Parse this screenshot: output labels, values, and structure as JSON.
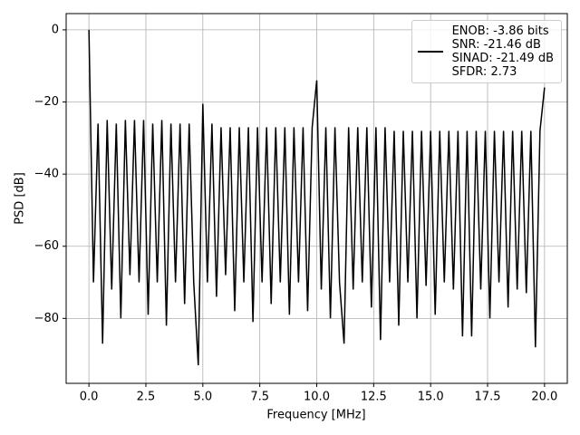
{
  "chart_data": {
    "type": "line",
    "xlabel": "Frequency [MHz]",
    "ylabel": "PSD [dB]",
    "x": [
      0.0,
      0.2,
      0.4,
      0.6,
      0.8,
      1.0,
      1.2,
      1.4,
      1.6,
      1.8,
      2.0,
      2.2,
      2.4,
      2.6,
      2.8,
      3.0,
      3.2,
      3.4,
      3.6,
      3.8,
      4.0,
      4.2,
      4.4,
      4.6,
      4.8,
      5.0,
      5.2,
      5.4,
      5.6,
      5.8,
      6.0,
      6.2,
      6.4,
      6.6,
      6.8,
      7.0,
      7.2,
      7.4,
      7.6,
      7.8,
      8.0,
      8.2,
      8.4,
      8.6,
      8.8,
      9.0,
      9.2,
      9.4,
      9.6,
      9.8,
      10.0,
      10.2,
      10.4,
      10.6,
      10.8,
      11.0,
      11.2,
      11.4,
      11.6,
      11.8,
      12.0,
      12.2,
      12.4,
      12.6,
      12.8,
      13.0,
      13.2,
      13.4,
      13.6,
      13.8,
      14.0,
      14.2,
      14.4,
      14.6,
      14.8,
      15.0,
      15.2,
      15.4,
      15.6,
      15.8,
      16.0,
      16.2,
      16.4,
      16.6,
      16.8,
      17.0,
      17.2,
      17.4,
      17.6,
      17.8,
      18.0,
      18.2,
      18.4,
      18.6,
      18.8,
      19.0,
      19.2,
      19.4,
      19.6,
      19.8,
      20.0
    ],
    "series": [
      {
        "name": "ENOB: -3.86 bits\nSNR: -21.46 dB\nSINAD: -21.49 dB\nSFDR: 2.73",
        "color": "#000000",
        "values": [
          0,
          -70,
          -26,
          -87,
          -25,
          -72,
          -26,
          -80,
          -25,
          -68,
          -25,
          -70,
          -25,
          -79,
          -26,
          -70,
          -25,
          -82,
          -26,
          -70,
          -26,
          -76,
          -26,
          -70,
          -93,
          -20.5,
          -70,
          -26,
          -74,
          -27,
          -68,
          -27,
          -78,
          -27,
          -70,
          -27,
          -81,
          -27,
          -70,
          -27,
          -76,
          -27,
          -70,
          -27,
          -79,
          -27,
          -70,
          -27,
          -78,
          -27,
          -14,
          -72,
          -27,
          -80,
          -27,
          -70,
          -87,
          -27,
          -72,
          -27,
          -70,
          -27,
          -77,
          -27,
          -86,
          -27,
          -70,
          -28,
          -82,
          -28,
          -70,
          -28,
          -80,
          -28,
          -71,
          -28,
          -79,
          -28,
          -70,
          -28,
          -72,
          -28,
          -85,
          -28,
          -85,
          -28,
          -72,
          -28,
          -80,
          -28,
          -70,
          -28,
          -77,
          -28,
          -72,
          -28,
          -73,
          -28,
          -88,
          -28,
          -16
        ]
      }
    ],
    "xlim": [
      -1,
      21
    ],
    "ylim": [
      -98,
      4.5
    ],
    "xticks": [
      {
        "value": 0,
        "label": "0.0"
      },
      2.5,
      {
        "value": 5,
        "label": "5.0"
      },
      7.5,
      {
        "value": 10,
        "label": "10.0"
      },
      12.5,
      {
        "value": 15,
        "label": "15.0"
      },
      17.5,
      {
        "value": 20,
        "label": "20.0"
      }
    ],
    "yticks": [
      0,
      {
        "value": -20,
        "label": "−20"
      },
      {
        "value": -40,
        "label": "−40"
      },
      {
        "value": -60,
        "label": "−60"
      },
      {
        "value": -80,
        "label": "−80"
      }
    ],
    "grid": true,
    "legend": "upper right"
  }
}
